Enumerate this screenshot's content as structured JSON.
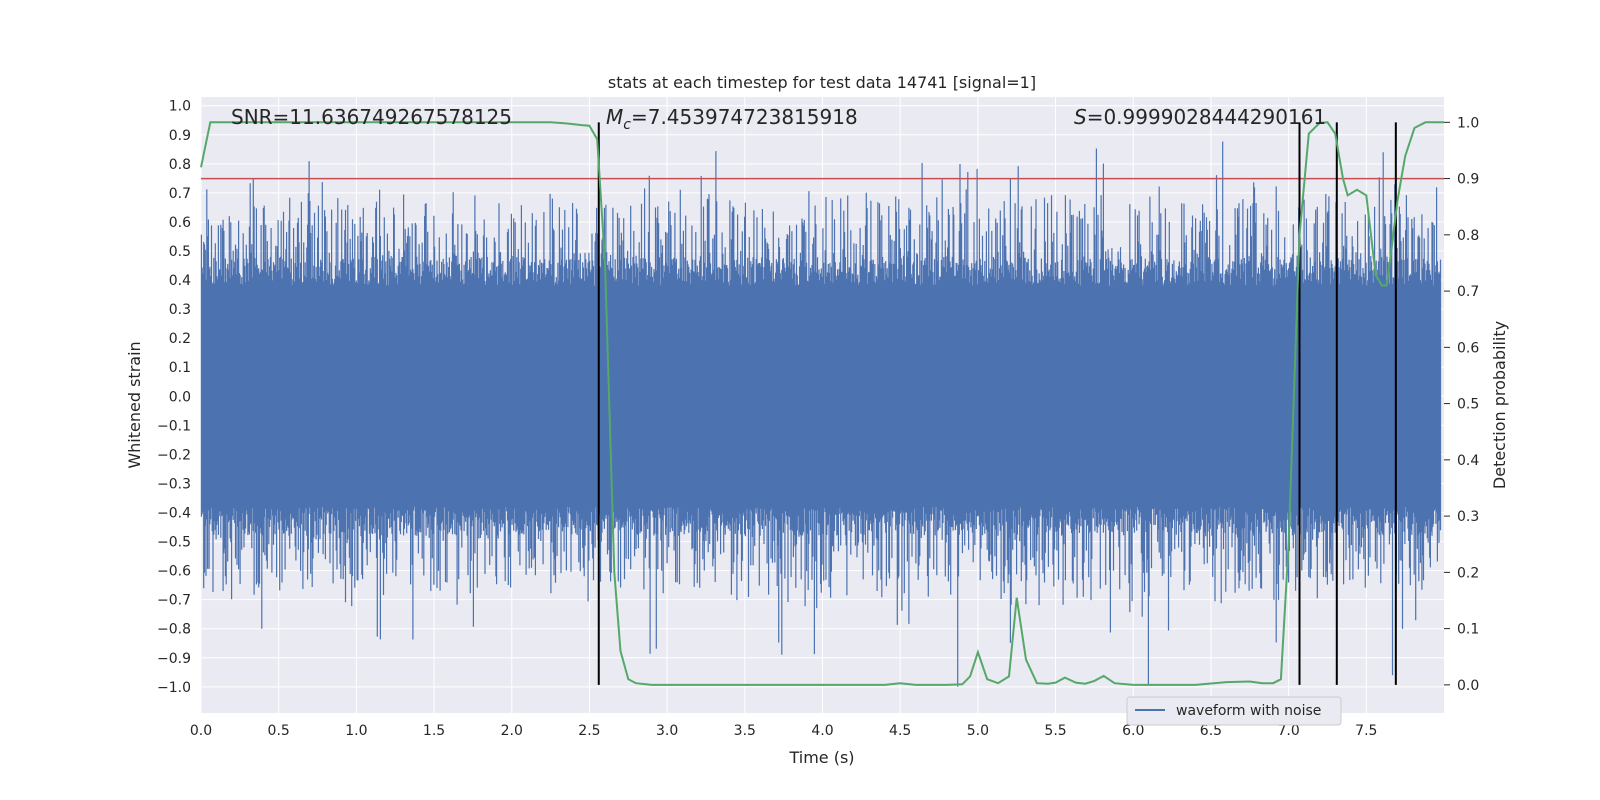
{
  "chart_data": {
    "type": "line",
    "title": "stats at each timestep for test data 14741 [signal=1]",
    "xlabel": "Time (s)",
    "ylabel_left": "Whitened strain",
    "ylabel_right": "Detection probability",
    "xlim": [
      0.0,
      8.0
    ],
    "ylim_left": [
      -1.09,
      1.03
    ],
    "ylim_right": [
      -0.05,
      1.045
    ],
    "x_ticks": [
      0.0,
      0.5,
      1.0,
      1.5,
      2.0,
      2.5,
      3.0,
      3.5,
      4.0,
      4.5,
      5.0,
      5.5,
      6.0,
      6.5,
      7.0,
      7.5
    ],
    "x_tick_labels": [
      "0.0",
      "0.5",
      "1.0",
      "1.5",
      "2.0",
      "2.5",
      "3.0",
      "3.5",
      "4.0",
      "4.5",
      "5.0",
      "5.5",
      "6.0",
      "6.5",
      "7.0",
      "7.5"
    ],
    "y_left_ticks": [
      1.0,
      0.9,
      0.8,
      0.7,
      0.6,
      0.5,
      0.4,
      0.3,
      0.2,
      0.1,
      0.0,
      -0.1,
      -0.2,
      -0.3,
      -0.4,
      -0.5,
      -0.6,
      -0.7,
      -0.8,
      -0.9,
      -1.0
    ],
    "y_left_tick_labels": [
      "1.0",
      "0.9",
      "0.8",
      "0.7",
      "0.6",
      "0.5",
      "0.4",
      "0.3",
      "0.2",
      "0.1",
      "0.0",
      "−0.1",
      "−0.2",
      "−0.3",
      "−0.4",
      "−0.5",
      "−0.6",
      "−0.7",
      "−0.8",
      "−0.9",
      "−1.0"
    ],
    "y_right_ticks": [
      0.0,
      0.1,
      0.2,
      0.3,
      0.4,
      0.5,
      0.6,
      0.7,
      0.8,
      0.9,
      1.0
    ],
    "y_right_tick_labels": [
      "0.0",
      "0.1",
      "0.2",
      "0.3",
      "0.4",
      "0.5",
      "0.6",
      "0.7",
      "0.8",
      "0.9",
      "1.0"
    ],
    "annotations": {
      "snr": "SNR=11.636749267578125",
      "mc_symbol": "M",
      "mc_subscript": "c",
      "mc_value": "=7.453974723815918",
      "s_symbol": "S",
      "s_value": "=0.9999028444290161"
    },
    "legend": {
      "label": "waveform with noise",
      "placement": "lower-right"
    },
    "threshold": {
      "value": 0.9,
      "axis": "right",
      "color": "#c44e52"
    },
    "vlines": [
      2.56,
      7.07,
      7.31,
      7.69
    ],
    "waveform": {
      "name": "waveform with noise",
      "color": "#4c72b0",
      "core_amplitude": 0.43,
      "peak_range": [
        -1.0,
        0.93
      ],
      "sample_count": 1600
    },
    "probability": {
      "name": "Detection probability",
      "color": "#55a868",
      "x": [
        0.0,
        0.06,
        0.2,
        0.5,
        1.0,
        1.5,
        2.0,
        2.25,
        2.35,
        2.45,
        2.5,
        2.55,
        2.6,
        2.63,
        2.66,
        2.7,
        2.75,
        2.8,
        2.9,
        3.0,
        3.2,
        3.5,
        4.0,
        4.4,
        4.5,
        4.6,
        4.8,
        4.9,
        4.95,
        5.0,
        5.06,
        5.13,
        5.2,
        5.25,
        5.31,
        5.38,
        5.45,
        5.5,
        5.56,
        5.63,
        5.69,
        5.75,
        5.81,
        5.88,
        6.0,
        6.1,
        6.4,
        6.6,
        6.75,
        6.83,
        6.9,
        6.95,
        7.0,
        7.07,
        7.13,
        7.2,
        7.25,
        7.3,
        7.35,
        7.38,
        7.44,
        7.5,
        7.56,
        7.6,
        7.63,
        7.66,
        7.7,
        7.75,
        7.81,
        7.88,
        7.94,
        8.0
      ],
      "y": [
        0.92,
        1.0,
        1.0,
        1.0,
        1.0,
        1.0,
        1.0,
        1.0,
        0.998,
        0.995,
        0.994,
        0.97,
        0.75,
        0.48,
        0.2,
        0.06,
        0.01,
        0.003,
        0.0,
        0.0,
        0.0,
        0.0,
        0.0,
        0.0,
        0.003,
        0.0,
        0.0,
        0.001,
        0.015,
        0.058,
        0.01,
        0.003,
        0.015,
        0.155,
        0.045,
        0.003,
        0.002,
        0.004,
        0.013,
        0.004,
        0.002,
        0.007,
        0.016,
        0.003,
        0.0,
        0.0,
        0.0,
        0.005,
        0.006,
        0.003,
        0.003,
        0.01,
        0.25,
        0.8,
        0.98,
        0.999,
        1.0,
        0.98,
        0.9,
        0.87,
        0.88,
        0.87,
        0.73,
        0.71,
        0.71,
        0.77,
        0.86,
        0.94,
        0.99,
        1.0,
        1.0,
        1.0
      ]
    }
  }
}
